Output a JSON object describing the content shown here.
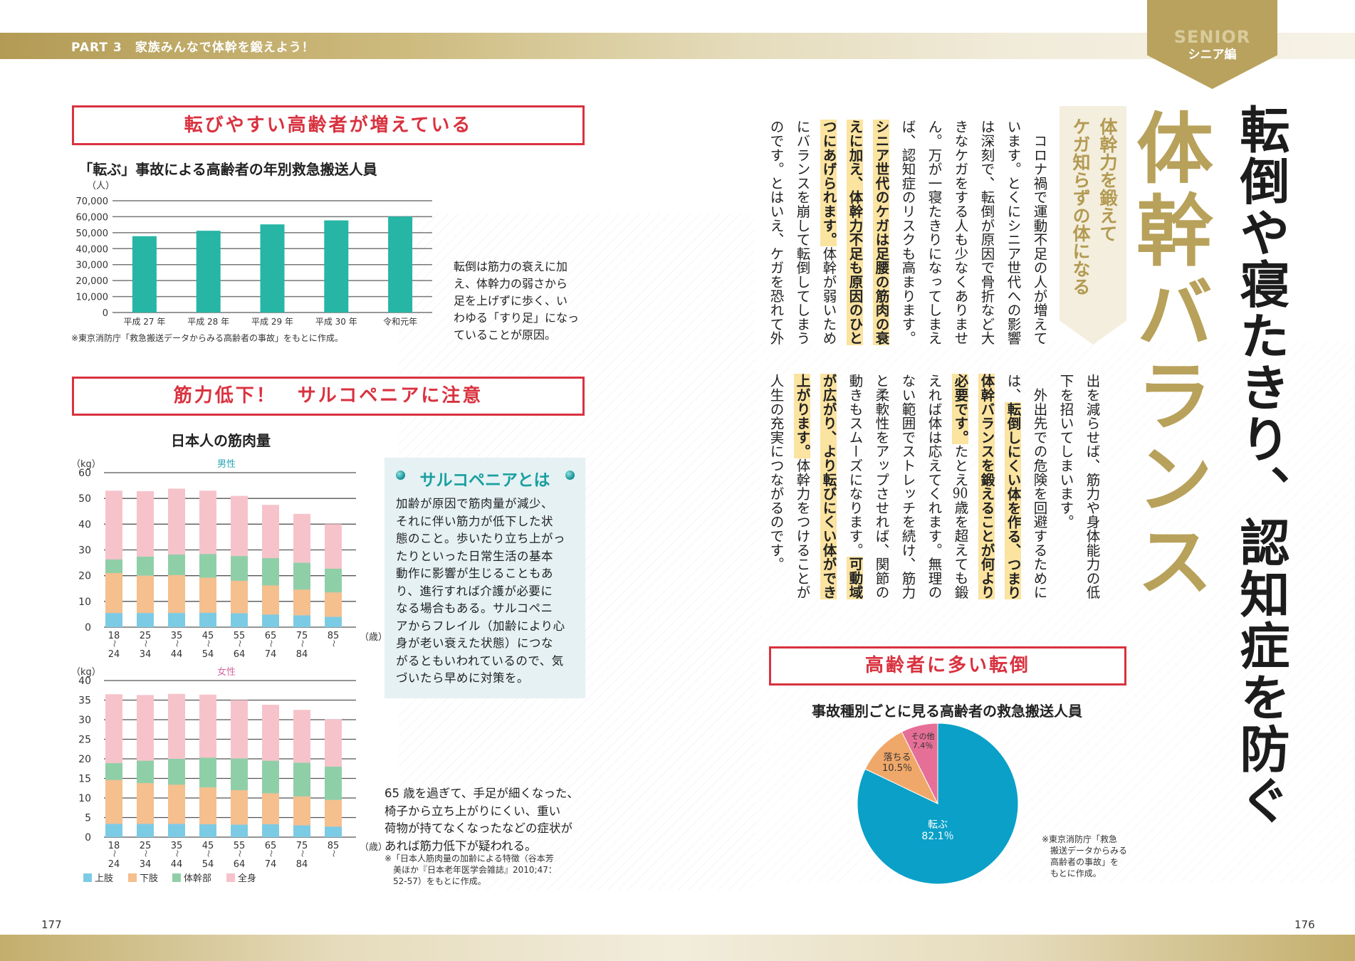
{
  "header": {
    "part_label": "PART 3　家族みんなで体幹を鍛えよう！",
    "tab_en": "SENIOR",
    "tab_ja": "シニア編"
  },
  "left_page": {
    "page_number": "177",
    "section1_title": "転びやすい高齢者が増えている",
    "chart1_caption_lines": [
      "転倒は筋力の衰えに加",
      "え、体幹力の弱さから",
      "足を上げずに歩く、い",
      "わゆる「すり足」になっ",
      "ていることが原因。"
    ],
    "chart1_source": "※東京消防庁「救急搬送データからみる高齢者の事故」をもとに作成。",
    "section2_title": "筋力低下！　サルコペニアに注意",
    "muscle_title": "日本人の筋肉量",
    "sarcopenia": {
      "title": "サルコペニアとは",
      "lines": [
        "加齢が原因で筋肉量が減少、",
        "それに伴い筋力が低下した状",
        "態のこと。歩いたり立ち上がっ",
        "たりといった日常生活の基本",
        "動作に影響が生じることもあ",
        "り、進行すれば介護が必要に",
        "なる場合もある。サルコペニ",
        "アからフレイル（加齢により心",
        "身が老い衰えた状態）につな",
        "がるともいわれているので、気",
        "づいたら早めに対策を。"
      ]
    },
    "symptom_lines": [
      "65 歳を過ぎて、手足が細くなった、",
      "椅子から立ち上がりにくい、重い",
      "荷物が持てなくなったなどの症状が",
      "あれば筋力低下が疑われる。"
    ],
    "muscle_source_lines": [
      "※「日本人筋肉量の加齢による特徴（谷本芳",
      "　美ほか『日本老年医学会雑誌』2010;47：",
      "　52-57）をもとに作成。"
    ]
  },
  "right_page": {
    "page_number": "176",
    "main_title": "転倒や寝たきり、認知症を防ぐ",
    "big_title": "体幹バランス",
    "subtitle_lines": [
      "体幹力を鍛えて",
      "ケガ知らずの体になる"
    ],
    "body_block1": [
      [
        {
          "t": "　コロナ禍で運動不足の人が増えて"
        }
      ],
      [
        {
          "t": "います。とくにシニア世代への影響"
        }
      ],
      [
        {
          "t": "は深刻で、転倒が原因で骨折など大"
        }
      ],
      [
        {
          "t": "きなケガをする人も少なくありませ"
        }
      ],
      [
        {
          "t": "ん。万が一寝たきりになってしまえ"
        }
      ],
      [
        {
          "t": "ば、認知症のリスクも高まります。"
        }
      ],
      [
        {
          "t": "シニア世代のケガは足腰の筋肉の衰",
          "hl": true
        }
      ],
      [
        {
          "t": "えに加え、体幹力不足も原因のひと",
          "hl": true
        }
      ],
      [
        {
          "t": "つにあげられます。",
          "hl": true
        },
        {
          "t": "体幹が弱いため"
        }
      ],
      [
        {
          "t": "にバランスを崩して転倒してしまう"
        }
      ],
      [
        {
          "t": "のです。とはいえ、ケガを恐れて外"
        }
      ]
    ],
    "body_block2": [
      [
        {
          "t": "出を減らせば、筋力や身体能力の低"
        }
      ],
      [
        {
          "t": "下を招いてしまいます。"
        }
      ],
      [
        {
          "t": "　外出先での危険を回避するために"
        }
      ],
      [
        {
          "t": "は、"
        },
        {
          "t": "転倒しにくい体を作る、つまり",
          "hl": true
        }
      ],
      [
        {
          "t": "体幹バランスを鍛えることが何より",
          "hl": true
        }
      ],
      [
        {
          "t": "必要です。",
          "hl": true
        },
        {
          "t": "たとえ"
        },
        {
          "t": "90",
          "tcy": true
        },
        {
          "t": "歳を超えても鍛"
        }
      ],
      [
        {
          "t": "えれば体は応えてくれます。無理の"
        }
      ],
      [
        {
          "t": "ない範囲でストレッチを続け、筋力"
        }
      ],
      [
        {
          "t": "と柔軟性をアップさせれば、関節の"
        }
      ],
      [
        {
          "t": "動きもスムーズになります。"
        },
        {
          "t": "可動域",
          "hl": true
        }
      ],
      [
        {
          "t": "が広がり、より転びにくい体ができ",
          "hl": true
        }
      ],
      [
        {
          "t": "上がります。",
          "hl": true
        },
        {
          "t": "体幹力をつけることが"
        }
      ],
      [
        {
          "t": "人生の充実につながるのです。"
        }
      ]
    ],
    "section3_title": "高齢者に多い転倒",
    "pie_source_lines": [
      "※東京消防庁「救急",
      "　搬送データからみる",
      "　高齢者の事故」を",
      "　もとに作成。"
    ]
  },
  "colors": {
    "red": "#d9323f",
    "gold": "#b8a15a",
    "teal_bar": "#27b5a5",
    "upper": "#7ccbe5",
    "lower": "#f5bf8e",
    "trunk": "#8fcfa8",
    "whole": "#f6c3cb",
    "pie_fall": "#0aa0c8",
    "pie_drop": "#f0a86a",
    "pie_other": "#e66f98"
  },
  "chart_data": [
    {
      "id": "falls_by_year",
      "type": "bar",
      "title": "「転ぶ」事故による高齢者の年別救急搬送人員",
      "ylabel": "（人）",
      "categories": [
        "平成 27 年",
        "平成 28 年",
        "平成 29 年",
        "平成 30 年",
        "令和元年"
      ],
      "values": [
        47800,
        51200,
        55200,
        57700,
        60100
      ],
      "ylim": [
        0,
        70000
      ],
      "yticks": [
        0,
        10000,
        20000,
        30000,
        40000,
        50000,
        60000,
        70000
      ],
      "ytick_labels": [
        "0",
        "10,000",
        "20,000",
        "30,000",
        "40,000",
        "50,000",
        "60,000",
        "70,000"
      ],
      "grid": true
    },
    {
      "id": "muscle_male",
      "type": "bar",
      "stacked": true,
      "title": "男性",
      "ylabel": "（kg）",
      "xlabel": "（歳）",
      "categories": [
        [
          "18",
          "24"
        ],
        [
          "25",
          "34"
        ],
        [
          "35",
          "44"
        ],
        [
          "45",
          "54"
        ],
        [
          "55",
          "64"
        ],
        [
          "65",
          "74"
        ],
        [
          "75",
          "84"
        ],
        [
          "85",
          ""
        ]
      ],
      "range_sep": "〜",
      "series": [
        {
          "name": "上肢",
          "values": [
            5.5,
            5.5,
            5.5,
            5.6,
            5.4,
            4.9,
            4.6,
            4.0
          ]
        },
        {
          "name": "下肢",
          "values": [
            15.5,
            14.5,
            14.7,
            13.6,
            12.6,
            11.3,
            10.0,
            9.5
          ]
        },
        {
          "name": "体幹部",
          "values": [
            5.3,
            7.4,
            8.0,
            9.2,
            9.6,
            10.6,
            10.4,
            9.2
          ]
        }
      ],
      "total": {
        "name": "全身",
        "values": [
          53.0,
          52.8,
          53.8,
          53.0,
          51.0,
          47.5,
          44.0,
          40.0
        ]
      },
      "ylim": [
        0,
        60
      ],
      "yticks": [
        0,
        10,
        20,
        30,
        40,
        50,
        60
      ],
      "ytick_labels": [
        "0",
        "10",
        "20",
        "30",
        "40",
        "50",
        "60"
      ]
    },
    {
      "id": "muscle_female",
      "type": "bar",
      "stacked": true,
      "title": "女性",
      "ylabel": "（kg）",
      "xlabel": "（歳）",
      "categories": [
        [
          "18",
          "24"
        ],
        [
          "25",
          "34"
        ],
        [
          "35",
          "44"
        ],
        [
          "45",
          "54"
        ],
        [
          "55",
          "64"
        ],
        [
          "65",
          "74"
        ],
        [
          "75",
          "84"
        ],
        [
          "85",
          ""
        ]
      ],
      "range_sep": "〜",
      "series": [
        {
          "name": "上肢",
          "values": [
            3.4,
            3.4,
            3.4,
            3.3,
            3.2,
            3.3,
            3.0,
            2.7
          ]
        },
        {
          "name": "下肢",
          "values": [
            11.2,
            10.4,
            10.0,
            9.4,
            8.8,
            7.9,
            7.4,
            6.8
          ]
        },
        {
          "name": "体幹部",
          "values": [
            4.3,
            5.7,
            6.6,
            7.6,
            8.1,
            8.3,
            8.6,
            8.5
          ]
        }
      ],
      "total": {
        "name": "全身",
        "values": [
          36.5,
          36.3,
          36.6,
          36.4,
          35.0,
          33.8,
          32.5,
          30.1
        ]
      },
      "ylim": [
        0,
        40
      ],
      "yticks": [
        0,
        5,
        10,
        15,
        20,
        25,
        30,
        35,
        40
      ],
      "ytick_labels": [
        "0",
        "5",
        "10",
        "15",
        "20",
        "25",
        "30",
        "35",
        "40"
      ],
      "legend": [
        "上肢",
        "下肢",
        "体幹部",
        "全身"
      ],
      "legend_position": "bottom-left"
    },
    {
      "id": "accident_types",
      "type": "pie",
      "title": "事故種別ごとに見る高齢者の救急搬送人員",
      "slices": [
        {
          "label": "転ぶ",
          "value": 82.1,
          "value_label": "82.1％"
        },
        {
          "label": "落ちる",
          "value": 10.5,
          "value_label": "10.5％"
        },
        {
          "label": "その他",
          "value": 7.4,
          "value_label": "7.4％"
        }
      ]
    }
  ]
}
